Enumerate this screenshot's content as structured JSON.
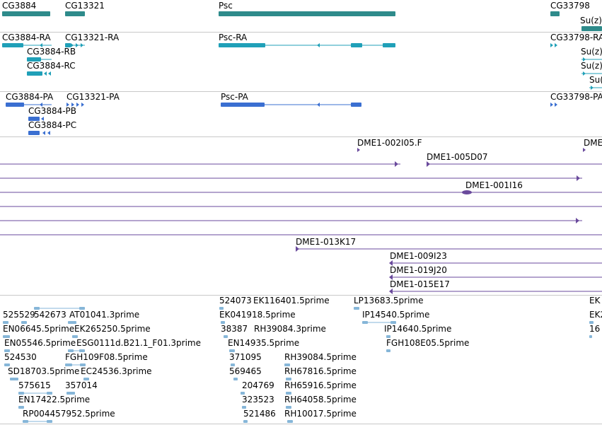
{
  "colors": {
    "gene": "#2e8b8b",
    "mrna": "#20a0b8",
    "cds": "#3a6fd1",
    "bac": "#6a4a9c",
    "est": "#86b6d8",
    "separator": "#c8c8c8",
    "label": "#000000"
  },
  "tracks": {
    "genes": [
      "CG3884",
      "CG13321",
      "Psc",
      "CG33798",
      "Su(z)"
    ],
    "transcripts": [
      "CG3884-RA",
      "CG13321-RA",
      "Psc-RA",
      "CG33798-RA",
      "CG3884-RB",
      "Su(z)",
      "CG3884-RC",
      "Su(z)",
      "Su("
    ],
    "proteins": [
      "CG3884-PA",
      "CG13321-PA",
      "Psc-PA",
      "CG33798-PA",
      "CG3884-PB",
      "CG3884-PC"
    ],
    "bacs": [
      "DME1-002I05.F",
      "DME",
      "DME1-005D07",
      "DME1-001I16",
      "DME1-013K17",
      "DME1-009I23",
      "DME1-019J20",
      "DME1-015E17"
    ],
    "ests": [
      "525529",
      "542673",
      "AT01041.3prime",
      "EN06645.5prime",
      "EK265250.5prime",
      "EN05546.5prime",
      "ESG0111d.B21.1_F01.3prime",
      "524530",
      "FGH109F08.5prime",
      "SD18703.5prime",
      "EC24536.3prime",
      "575615",
      "357014",
      "EN17422.5prime",
      "RP004457952.5prime",
      "524073",
      "EK116401.5prime",
      "EK041918.5prime",
      "38387",
      "RH39084.3prime",
      "EN14935.5prime",
      "371095",
      "RH39084.5prime",
      "569465",
      "RH67816.5prime",
      "204769",
      "RH65916.5prime",
      "323523",
      "RH64058.5prime",
      "521486",
      "RH10017.5prime",
      "LP13683.5prime",
      "IP14540.5prime",
      "IP14640.5prime",
      "FGH108E05.5prime",
      "EK",
      "EK2",
      "16"
    ]
  }
}
